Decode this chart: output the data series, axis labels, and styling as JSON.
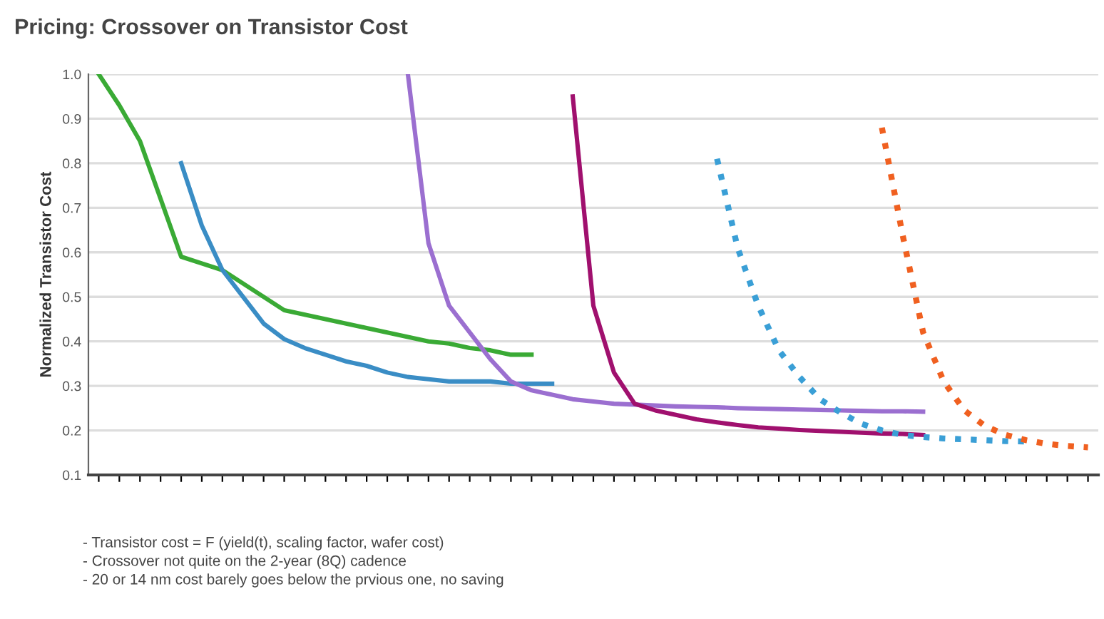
{
  "chart_data": {
    "type": "line",
    "title": "Pricing: Crossover on Transistor Cost",
    "ylabel": "Normalized Transistor Cost",
    "categories": [
      null,
      null,
      null,
      null,
      null,
      null,
      null,
      null,
      null,
      null,
      null,
      null,
      null,
      null,
      null,
      null,
      null,
      null,
      null,
      null,
      null,
      null,
      null,
      null,
      null,
      null,
      null,
      null,
      null,
      null,
      null,
      null,
      null,
      null,
      null,
      null,
      null,
      null,
      null,
      null,
      null,
      null,
      null,
      null,
      null,
      null,
      null,
      null,
      null
    ],
    "series": [
      {
        "color": "#3aaa35",
        "line_style": "solid",
        "values": [
          1.0,
          0.93,
          0.85,
          0.72,
          0.59,
          0.575,
          0.56,
          0.53,
          0.5,
          0.47,
          0.46,
          0.45,
          0.44,
          0.43,
          0.42,
          0.41,
          0.4,
          0.395,
          0.385,
          0.38,
          0.37,
          0.37,
          null,
          null,
          null,
          null,
          null,
          null,
          null,
          null,
          null,
          null,
          null,
          null,
          null,
          null,
          null,
          null,
          null,
          null,
          null,
          null,
          null,
          null,
          null,
          null,
          null,
          null,
          null
        ]
      },
      {
        "color": "#3a8dc5",
        "line_style": "solid",
        "values": [
          null,
          null,
          null,
          null,
          0.8,
          0.66,
          0.56,
          0.5,
          0.44,
          0.405,
          0.385,
          0.37,
          0.355,
          0.345,
          0.33,
          0.32,
          0.315,
          0.31,
          0.31,
          0.31,
          0.305,
          0.305,
          0.305,
          null,
          null,
          null,
          null,
          null,
          null,
          null,
          null,
          null,
          null,
          null,
          null,
          null,
          null,
          null,
          null,
          null,
          null,
          null,
          null,
          null,
          null,
          null,
          null,
          null,
          null
        ]
      },
      {
        "color": "#9b6fd0",
        "line_style": "solid",
        "values": [
          null,
          null,
          null,
          null,
          null,
          null,
          null,
          null,
          null,
          null,
          null,
          null,
          null,
          null,
          null,
          1.0,
          0.62,
          0.48,
          0.42,
          0.36,
          0.31,
          0.29,
          0.28,
          0.27,
          0.265,
          0.26,
          0.258,
          0.256,
          0.254,
          0.253,
          0.252,
          0.25,
          0.249,
          0.248,
          0.247,
          0.246,
          0.245,
          0.244,
          0.243,
          0.243,
          0.242,
          null,
          null,
          null,
          null,
          null,
          null,
          null,
          null
        ]
      },
      {
        "color": "#a0106e",
        "line_style": "solid",
        "values": [
          null,
          null,
          null,
          null,
          null,
          null,
          null,
          null,
          null,
          null,
          null,
          null,
          null,
          null,
          null,
          null,
          null,
          null,
          null,
          null,
          null,
          null,
          null,
          0.95,
          0.48,
          0.33,
          0.26,
          0.245,
          0.235,
          0.225,
          0.218,
          0.212,
          0.207,
          0.204,
          0.201,
          0.199,
          0.197,
          0.195,
          0.193,
          0.192,
          0.19,
          null,
          null,
          null,
          null,
          null,
          null,
          null,
          null
        ]
      },
      {
        "color": "#3a9fd6",
        "line_style": "dotted",
        "values": [
          null,
          null,
          null,
          null,
          null,
          null,
          null,
          null,
          null,
          null,
          null,
          null,
          null,
          null,
          null,
          null,
          null,
          null,
          null,
          null,
          null,
          null,
          null,
          null,
          null,
          null,
          null,
          null,
          null,
          null,
          0.81,
          0.61,
          0.48,
          0.38,
          0.32,
          0.27,
          0.24,
          0.215,
          0.2,
          0.19,
          0.185,
          0.182,
          0.18,
          0.178,
          0.176,
          0.175,
          null,
          null,
          null
        ]
      },
      {
        "color": "#f06020",
        "line_style": "dotted",
        "values": [
          null,
          null,
          null,
          null,
          null,
          null,
          null,
          null,
          null,
          null,
          null,
          null,
          null,
          null,
          null,
          null,
          null,
          null,
          null,
          null,
          null,
          null,
          null,
          null,
          null,
          null,
          null,
          null,
          null,
          null,
          null,
          null,
          null,
          null,
          null,
          null,
          null,
          null,
          0.88,
          0.64,
          0.42,
          0.31,
          0.245,
          0.21,
          0.19,
          0.178,
          0.17,
          0.165,
          0.162
        ]
      }
    ],
    "ylim": [
      0.1,
      1.0
    ],
    "yticks": [
      {
        "value": 0.1,
        "label": "0.1"
      },
      {
        "value": 0.2,
        "label": "0.2"
      },
      {
        "value": 0.3,
        "label": "0.3"
      },
      {
        "value": 0.4,
        "label": "0.4"
      },
      {
        "value": 0.5,
        "label": "0.5"
      },
      {
        "value": 0.6,
        "label": "0.6"
      },
      {
        "value": 0.7,
        "label": "0.7"
      },
      {
        "value": 0.8,
        "label": "0.8"
      },
      {
        "value": 0.9,
        "label": "0.9"
      },
      {
        "value": 1.0,
        "label": "1.0"
      }
    ],
    "grid": "y",
    "annotations": [
      "- Transistor cost = F (yield(t), scaling factor, wafer cost)",
      "- Crossover not quite on the 2-year (8Q) cadence",
      "- 20 or 14 nm cost barely goes below the prvious one, no saving"
    ]
  }
}
